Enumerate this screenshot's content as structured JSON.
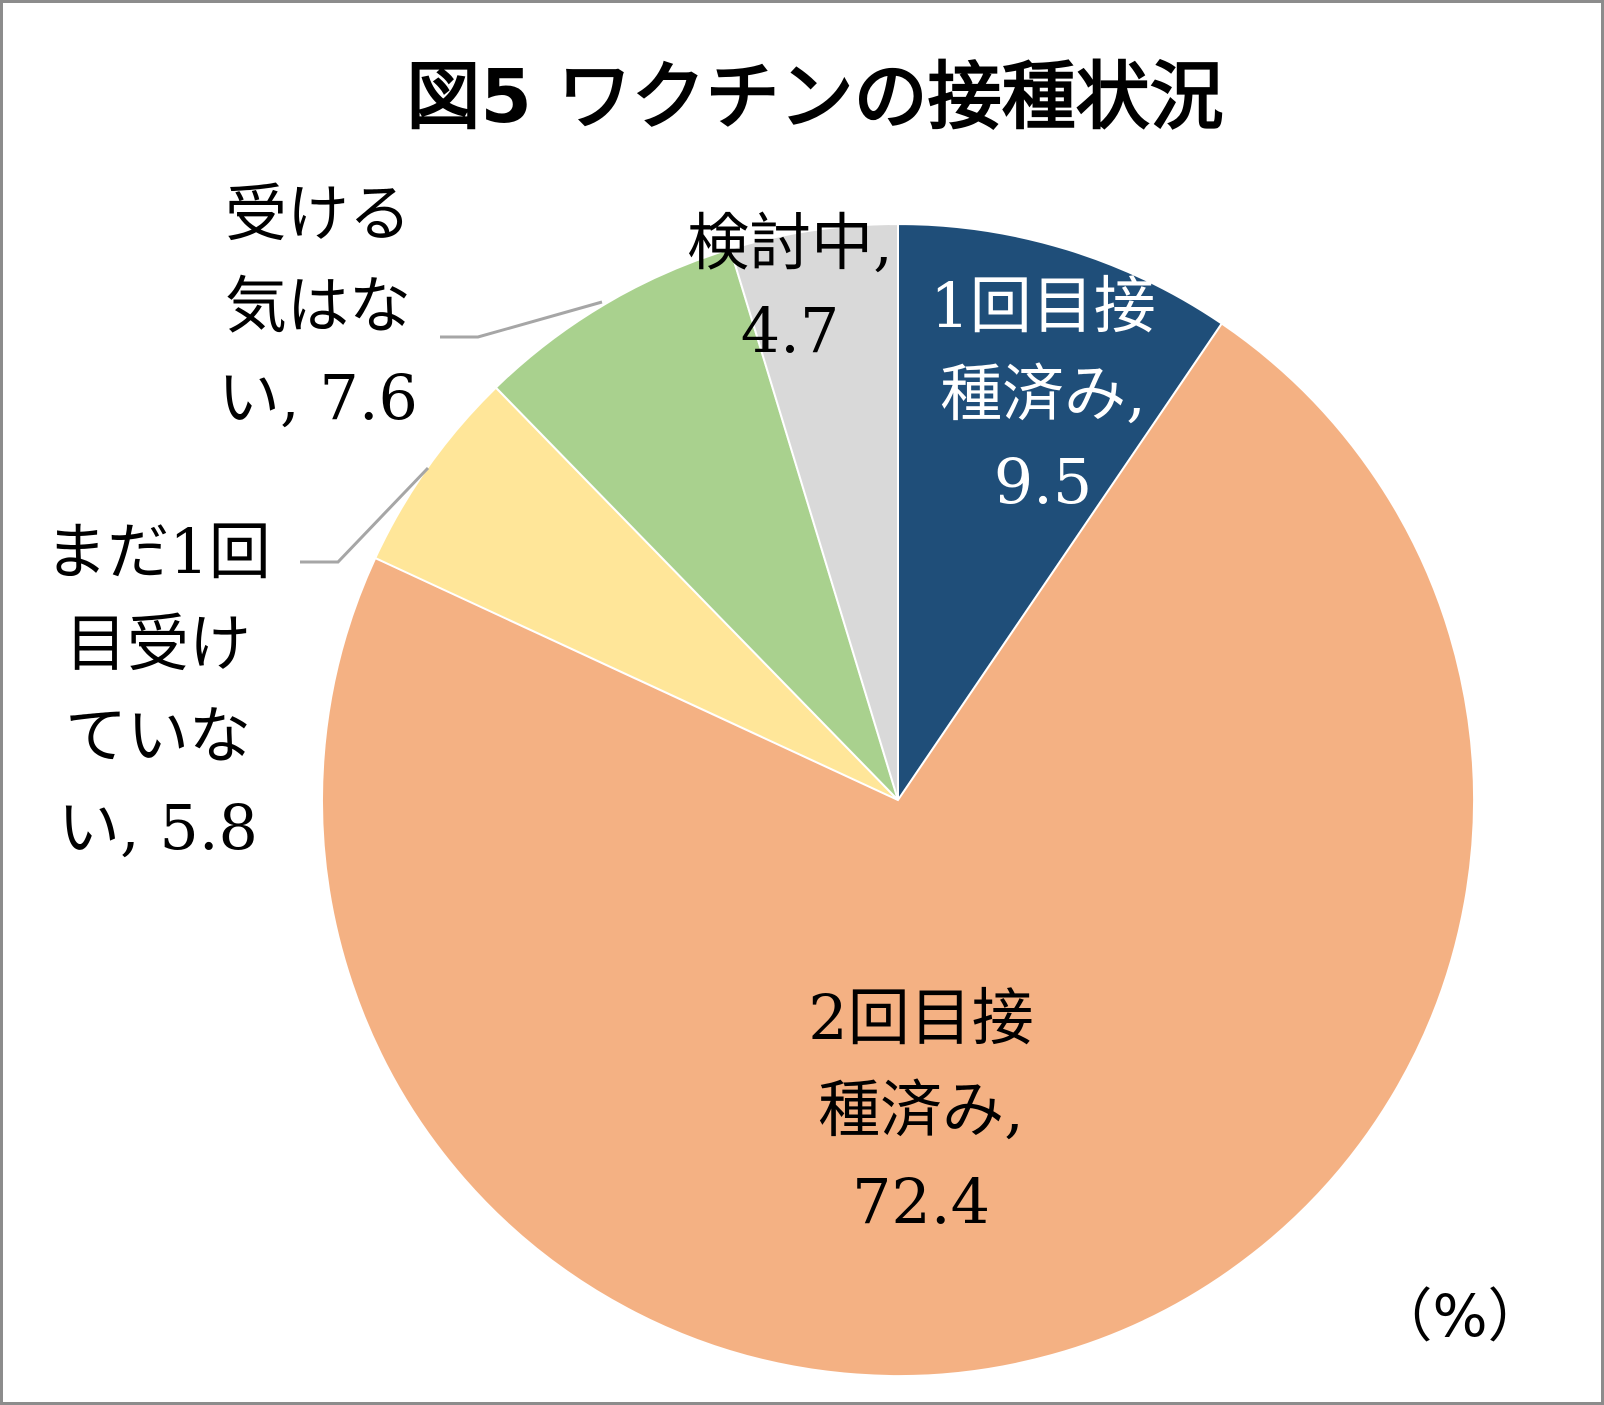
{
  "chart_data": {
    "type": "pie",
    "title": "図5 ワクチンの接種状況",
    "unit_note": "（%）",
    "start_angle_deg": 0,
    "direction": "clockwise",
    "slices": [
      {
        "label_lines": [
          "1回目接",
          "種済み,",
          "9.5"
        ],
        "name": "1回目接種済み",
        "value": 9.5,
        "color": "#1f4e79",
        "label_color": "#ffffff"
      },
      {
        "label_lines": [
          "2回目接",
          "種済み,",
          "72.4"
        ],
        "name": "2回目接種済み",
        "value": 72.4,
        "color": "#f4b183",
        "label_color": "#000000"
      },
      {
        "label_lines": [
          "まだ1回",
          "目受け",
          "ていな",
          "い, 5.8"
        ],
        "name": "まだ1回目受けていない",
        "value": 5.8,
        "color": "#ffe699",
        "label_color": "#000000"
      },
      {
        "label_lines": [
          "受ける",
          "気はな",
          "い, 7.6"
        ],
        "name": "受ける気はない",
        "value": 7.6,
        "color": "#a9d18e",
        "label_color": "#000000"
      },
      {
        "label_lines": [
          "検討中,",
          "4.7"
        ],
        "name": "検討中",
        "value": 4.7,
        "color": "#d9d9d9",
        "label_color": "#000000"
      }
    ]
  }
}
